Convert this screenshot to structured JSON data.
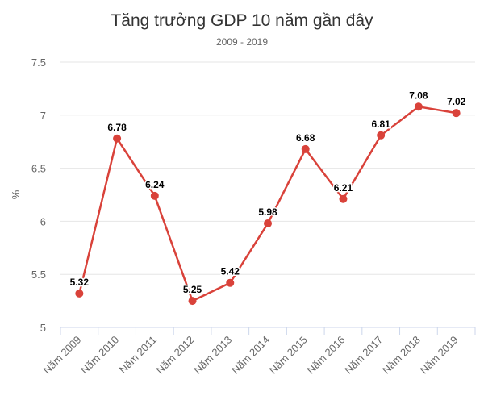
{
  "chart_data": {
    "type": "line",
    "title": "Tăng trưởng GDP 10 năm gần đây",
    "subtitle": "2009 - 2019",
    "xlabel": "",
    "ylabel": "%",
    "categories": [
      "Năm 2009",
      "Năm 2010",
      "Năm 2011",
      "Năm 2012",
      "Năm 2013",
      "Năm 2014",
      "Năm 2015",
      "Năm 2016",
      "Năm 2017",
      "Năm 2018",
      "Năm 2019"
    ],
    "values": [
      5.32,
      6.78,
      6.24,
      5.25,
      5.42,
      5.98,
      6.68,
      6.21,
      6.81,
      7.08,
      7.02
    ],
    "ylim": [
      5,
      7.5
    ],
    "yticks": [
      "5",
      "5.5",
      "6",
      "6.5",
      "7",
      "7.5"
    ],
    "grid": true,
    "legend": "none",
    "color": "#d9423a"
  }
}
